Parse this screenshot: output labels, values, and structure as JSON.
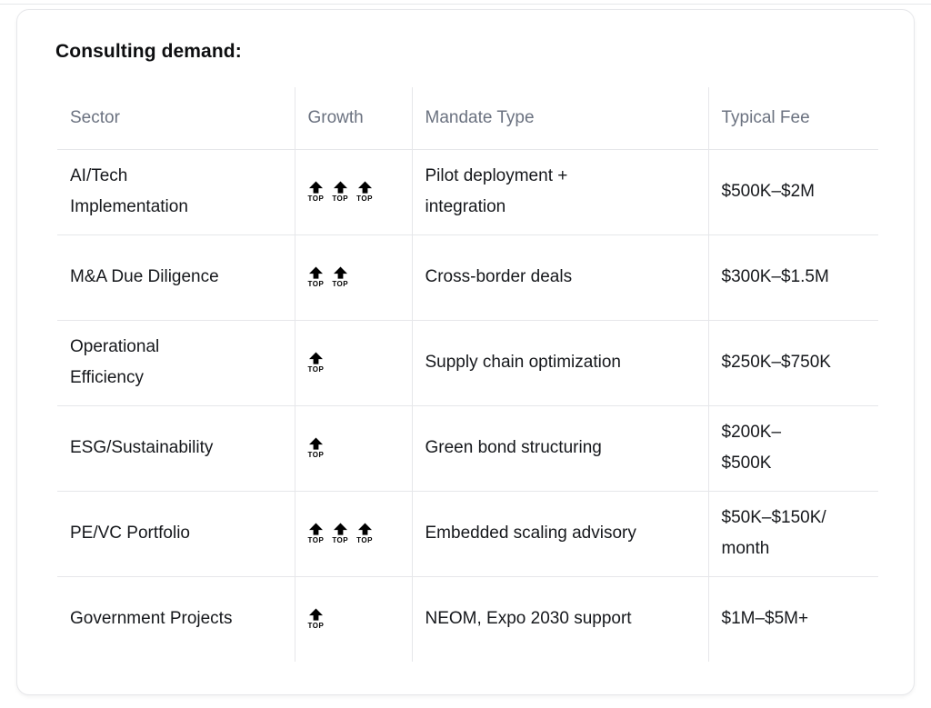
{
  "title": "Consulting demand:",
  "colors": {
    "border": "#e6e7ea",
    "header_text": "#6b7280",
    "body_text": "#16181c",
    "title_text": "#0d0e10",
    "icon_color": "#000000",
    "card_background": "#ffffff"
  },
  "table": {
    "columns": [
      "Sector",
      "Growth",
      "Mandate Type",
      "Typical Fee"
    ],
    "growth_icon": "top-arrow-icon",
    "growth_icon_label": "TOP",
    "rows": [
      {
        "sector": "AI/Tech\nImplementation",
        "growth": 3,
        "mandate": "Pilot deployment +\nintegration",
        "fee": "$500K–$2M"
      },
      {
        "sector": "M&A Due Diligence",
        "growth": 2,
        "mandate": "Cross-border deals",
        "fee": "$300K–$1.5M"
      },
      {
        "sector": "Operational\nEfficiency",
        "growth": 1,
        "mandate": "Supply chain optimization",
        "fee": "$250K–$750K"
      },
      {
        "sector": "ESG/Sustainability",
        "growth": 1,
        "mandate": "Green bond structuring",
        "fee": "$200K–\n$500K"
      },
      {
        "sector": "PE/VC Portfolio",
        "growth": 3,
        "mandate": "Embedded scaling advisory",
        "fee": "$50K–$150K/\nmonth"
      },
      {
        "sector": "Government Projects",
        "growth": 1,
        "mandate": "NEOM, Expo 2030 support",
        "fee": "$1M–$5M+"
      }
    ]
  }
}
